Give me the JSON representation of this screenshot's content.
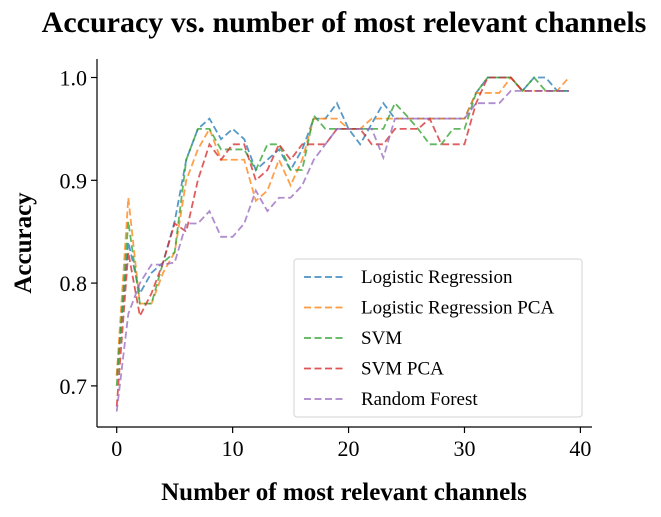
{
  "chart_data": {
    "type": "line",
    "title": "Accuracy vs. number of most relevant channels",
    "xlabel": "Number of most relevant channels",
    "ylabel": "Accuracy",
    "xlim": [
      -1.7,
      41
    ],
    "ylim": [
      0.66,
      1.018
    ],
    "xticks": [
      0,
      10,
      20,
      30,
      40
    ],
    "yticks": [
      0.7,
      0.8,
      0.9,
      1.0
    ],
    "xtick_labels": [
      "0",
      "10",
      "20",
      "30",
      "40"
    ],
    "ytick_labels": [
      "0.7",
      "0.8",
      "0.9",
      "1.0"
    ],
    "grid": false,
    "legend_position": "lower-right",
    "x": [
      0,
      1,
      2,
      3,
      4,
      5,
      6,
      7,
      8,
      9,
      10,
      11,
      12,
      13,
      14,
      15,
      16,
      17,
      18,
      19,
      20,
      21,
      22,
      23,
      24,
      25,
      26,
      27,
      28,
      29,
      30,
      31,
      32,
      33,
      34,
      35,
      36,
      37,
      38,
      39
    ],
    "series": [
      {
        "name": "Logistic Regression",
        "color": "#1f77b4",
        "values": [
          0.71,
          0.84,
          0.79,
          0.81,
          0.82,
          0.86,
          0.92,
          0.95,
          0.96,
          0.94,
          0.95,
          0.94,
          0.91,
          0.92,
          0.93,
          0.91,
          0.93,
          0.96,
          0.96,
          0.975,
          0.95,
          0.935,
          0.955,
          0.975,
          0.96,
          0.96,
          0.96,
          0.96,
          0.96,
          0.96,
          0.96,
          0.985,
          1.0,
          1.0,
          1.0,
          0.987,
          1.0,
          1.0,
          0.987,
          0.987
        ]
      },
      {
        "name": "Logistic Regression PCA",
        "color": "#ff7f0e",
        "values": [
          0.71,
          0.883,
          0.78,
          0.78,
          0.81,
          0.83,
          0.9,
          0.93,
          0.95,
          0.92,
          0.92,
          0.92,
          0.88,
          0.89,
          0.92,
          0.895,
          0.92,
          0.96,
          0.96,
          0.96,
          0.95,
          0.95,
          0.96,
          0.96,
          0.96,
          0.96,
          0.96,
          0.96,
          0.96,
          0.96,
          0.96,
          0.985,
          0.985,
          0.985,
          1.0,
          0.987,
          0.987,
          0.987,
          0.987,
          1.0
        ]
      },
      {
        "name": "SVM",
        "color": "#2ca02c",
        "values": [
          0.7,
          0.86,
          0.78,
          0.78,
          0.82,
          0.83,
          0.92,
          0.95,
          0.95,
          0.93,
          0.93,
          0.93,
          0.91,
          0.935,
          0.935,
          0.91,
          0.91,
          0.963,
          0.95,
          0.95,
          0.95,
          0.95,
          0.95,
          0.95,
          0.975,
          0.963,
          0.95,
          0.935,
          0.935,
          0.95,
          0.95,
          0.985,
          1.0,
          1.0,
          1.0,
          0.987,
          1.0,
          0.987,
          0.987,
          0.987
        ]
      },
      {
        "name": "SVM PCA",
        "color": "#d62728",
        "values": [
          0.68,
          0.83,
          0.768,
          0.79,
          0.82,
          0.858,
          0.85,
          0.9,
          0.935,
          0.92,
          0.935,
          0.935,
          0.9,
          0.91,
          0.935,
          0.92,
          0.935,
          0.935,
          0.935,
          0.95,
          0.95,
          0.95,
          0.935,
          0.935,
          0.95,
          0.95,
          0.95,
          0.96,
          0.935,
          0.935,
          0.935,
          0.975,
          1.0,
          1.0,
          1.0,
          0.987,
          0.987,
          0.987,
          0.987,
          0.987
        ]
      },
      {
        "name": "Random Forest",
        "color": "#9467bd",
        "values": [
          0.675,
          0.77,
          0.8,
          0.818,
          0.818,
          0.82,
          0.858,
          0.858,
          0.87,
          0.845,
          0.845,
          0.858,
          0.89,
          0.87,
          0.883,
          0.883,
          0.895,
          0.92,
          0.935,
          0.95,
          0.95,
          0.95,
          0.95,
          0.922,
          0.96,
          0.96,
          0.96,
          0.96,
          0.96,
          0.96,
          0.96,
          0.975,
          0.975,
          0.975,
          0.987,
          0.987,
          0.987,
          0.987,
          0.987,
          0.987
        ]
      }
    ]
  }
}
